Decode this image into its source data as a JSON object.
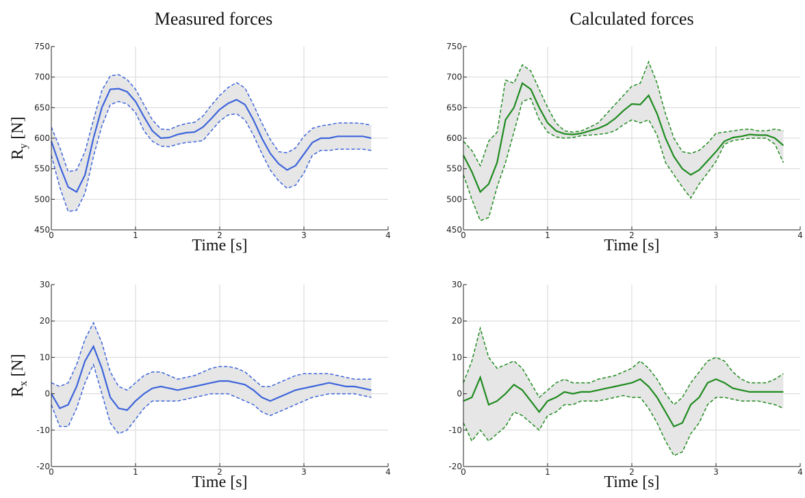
{
  "figure": {
    "left_title": "Measured forces",
    "right_title": "Calculated forces",
    "colors": {
      "measured": "#3b63db",
      "calculated": "#1d8a1d",
      "band": "#e6e6e6"
    }
  },
  "chart_data": [
    {
      "type": "line",
      "panel": "top-left",
      "title": "Measured forces",
      "xlabel": "Time [s]",
      "ylabel": "R_y [N]",
      "ylabel_main": "R",
      "ylabel_sub": "y",
      "ylabel_unit": "[N]",
      "xlim": [
        0,
        4
      ],
      "ylim": [
        450,
        750
      ],
      "xticks": [
        "0",
        "1",
        "2",
        "3",
        "4"
      ],
      "yticks": [
        "450",
        "500",
        "550",
        "600",
        "650",
        "700",
        "750"
      ],
      "grid": true,
      "x": [
        0,
        0.1,
        0.2,
        0.3,
        0.4,
        0.5,
        0.6,
        0.7,
        0.8,
        0.9,
        1.0,
        1.1,
        1.2,
        1.3,
        1.4,
        1.5,
        1.6,
        1.7,
        1.8,
        1.9,
        2.0,
        2.1,
        2.2,
        2.3,
        2.4,
        2.5,
        2.6,
        2.7,
        2.8,
        2.9,
        3.0,
        3.1,
        3.2,
        3.3,
        3.4,
        3.5,
        3.6,
        3.7,
        3.8
      ],
      "mean": [
        595,
        555,
        520,
        512,
        540,
        600,
        650,
        680,
        681,
        676,
        660,
        635,
        612,
        600,
        601,
        606,
        609,
        610,
        618,
        632,
        647,
        657,
        663,
        655,
        630,
        600,
        575,
        558,
        548,
        555,
        574,
        593,
        600,
        600,
        603,
        603,
        603,
        603,
        600
      ],
      "upper": [
        618,
        585,
        545,
        548,
        578,
        630,
        678,
        702,
        704,
        696,
        680,
        655,
        630,
        615,
        614,
        620,
        624,
        626,
        636,
        654,
        670,
        683,
        691,
        682,
        655,
        625,
        598,
        578,
        576,
        584,
        603,
        616,
        620,
        622,
        625,
        625,
        625,
        624,
        621
      ],
      "lower": [
        572,
        520,
        480,
        482,
        510,
        570,
        620,
        655,
        660,
        656,
        642,
        612,
        595,
        587,
        586,
        590,
        593,
        594,
        596,
        612,
        628,
        638,
        640,
        630,
        605,
        575,
        548,
        530,
        518,
        523,
        543,
        572,
        580,
        580,
        582,
        582,
        582,
        582,
        580
      ]
    },
    {
      "type": "line",
      "panel": "top-right",
      "title": "Calculated forces",
      "xlabel": "Time [s]",
      "ylabel": "",
      "xlim": [
        0,
        4
      ],
      "ylim": [
        450,
        750
      ],
      "xticks": [
        "0",
        "1",
        "2",
        "3",
        "4"
      ],
      "yticks": [
        "450",
        "500",
        "550",
        "600",
        "650",
        "700",
        "750"
      ],
      "grid": true,
      "x": [
        0,
        0.1,
        0.2,
        0.3,
        0.4,
        0.5,
        0.6,
        0.7,
        0.8,
        0.9,
        1.0,
        1.1,
        1.2,
        1.3,
        1.4,
        1.5,
        1.6,
        1.7,
        1.8,
        1.9,
        2.0,
        2.1,
        2.2,
        2.3,
        2.4,
        2.5,
        2.6,
        2.7,
        2.8,
        2.9,
        3.0,
        3.1,
        3.2,
        3.3,
        3.4,
        3.5,
        3.6,
        3.7,
        3.8
      ],
      "mean": [
        572,
        545,
        512,
        525,
        560,
        630,
        650,
        690,
        680,
        650,
        625,
        612,
        607,
        606,
        608,
        612,
        616,
        622,
        632,
        645,
        656,
        655,
        670,
        640,
        600,
        570,
        550,
        540,
        548,
        563,
        578,
        595,
        601,
        603,
        606,
        605,
        605,
        600,
        588
      ],
      "upper": [
        595,
        580,
        555,
        595,
        610,
        695,
        690,
        720,
        710,
        680,
        650,
        625,
        612,
        610,
        612,
        618,
        625,
        640,
        655,
        670,
        685,
        690,
        725,
        690,
        640,
        600,
        578,
        575,
        580,
        592,
        608,
        610,
        612,
        614,
        615,
        612,
        612,
        615,
        612
      ],
      "lower": [
        540,
        500,
        465,
        470,
        520,
        560,
        610,
        660,
        665,
        630,
        610,
        602,
        600,
        601,
        604,
        605,
        606,
        608,
        612,
        622,
        630,
        625,
        630,
        605,
        560,
        540,
        520,
        502,
        525,
        543,
        562,
        590,
        596,
        598,
        600,
        600,
        600,
        590,
        560
      ]
    },
    {
      "type": "line",
      "panel": "bottom-left",
      "title": "",
      "xlabel": "Time [s]",
      "ylabel": "R_x [N]",
      "ylabel_main": "R",
      "ylabel_sub": "x",
      "ylabel_unit": "[N]",
      "xlim": [
        0,
        4
      ],
      "ylim": [
        -20,
        30
      ],
      "xticks": [
        "0",
        "1",
        "2",
        "3",
        "4"
      ],
      "yticks": [
        "-20",
        "-10",
        "0",
        "10",
        "20",
        "30"
      ],
      "grid": true,
      "x": [
        0,
        0.1,
        0.2,
        0.3,
        0.4,
        0.5,
        0.6,
        0.7,
        0.8,
        0.9,
        1.0,
        1.1,
        1.2,
        1.3,
        1.4,
        1.5,
        1.6,
        1.7,
        1.8,
        1.9,
        2.0,
        2.1,
        2.2,
        2.3,
        2.4,
        2.5,
        2.6,
        2.7,
        2.8,
        2.9,
        3.0,
        3.1,
        3.2,
        3.3,
        3.4,
        3.5,
        3.6,
        3.7,
        3.8
      ],
      "mean": [
        0,
        -4,
        -3,
        2,
        9,
        13,
        7,
        -1,
        -4,
        -4.5,
        -2,
        0,
        1.5,
        2,
        1.5,
        1,
        1.5,
        2,
        2.5,
        3,
        3.5,
        3.5,
        3,
        2.5,
        1,
        -1,
        -2,
        -1,
        0,
        1,
        1.5,
        2,
        2.5,
        3,
        2.5,
        2,
        2,
        1.5,
        1
      ],
      "upper": [
        3,
        2,
        3,
        8,
        15,
        19.5,
        14,
        6,
        2,
        1,
        3,
        5,
        6,
        6,
        5,
        4,
        4.5,
        5,
        6,
        7,
        7.5,
        7.5,
        7,
        6,
        4,
        2,
        2,
        3,
        4,
        5,
        5.5,
        5.5,
        5.5,
        5.5,
        5,
        4.5,
        4,
        4,
        4
      ],
      "lower": [
        -3,
        -9,
        -9,
        -4,
        3,
        8,
        0,
        -8,
        -11,
        -10,
        -7,
        -4,
        -2,
        -2,
        -2,
        -2,
        -1.5,
        -1,
        -0.5,
        0,
        0,
        0,
        -1,
        -2,
        -3,
        -5,
        -6,
        -5,
        -4,
        -3,
        -2,
        -1,
        -0.5,
        0,
        0,
        0,
        0,
        -0.5,
        -1
      ]
    },
    {
      "type": "line",
      "panel": "bottom-right",
      "title": "",
      "xlabel": "Time [s]",
      "ylabel": "",
      "xlim": [
        0,
        4
      ],
      "ylim": [
        -20,
        30
      ],
      "xticks": [
        "0",
        "1",
        "2",
        "3",
        "4"
      ],
      "yticks": [
        "-20",
        "-10",
        "0",
        "10",
        "20",
        "30"
      ],
      "grid": true,
      "x": [
        0,
        0.1,
        0.2,
        0.3,
        0.4,
        0.5,
        0.6,
        0.7,
        0.8,
        0.9,
        1.0,
        1.1,
        1.2,
        1.3,
        1.4,
        1.5,
        1.6,
        1.7,
        1.8,
        1.9,
        2.0,
        2.1,
        2.2,
        2.3,
        2.4,
        2.5,
        2.6,
        2.7,
        2.8,
        2.9,
        3.0,
        3.1,
        3.2,
        3.3,
        3.4,
        3.5,
        3.6,
        3.7,
        3.8
      ],
      "mean": [
        -2,
        -1,
        4.5,
        -3,
        -2,
        0,
        2.5,
        1,
        -2,
        -5,
        -2,
        -1,
        0.5,
        0,
        0.5,
        0.5,
        1,
        1.5,
        2,
        2.5,
        3,
        4,
        2,
        -1,
        -5,
        -9,
        -8,
        -3,
        -1,
        3,
        4,
        3,
        1.5,
        1,
        0.5,
        0.5,
        0.5,
        0.5,
        0.5
      ],
      "upper": [
        3,
        9,
        18,
        10,
        7,
        8,
        9,
        7,
        3,
        -1,
        1,
        3,
        4,
        3,
        3,
        3,
        4,
        4.5,
        5,
        6,
        7,
        9,
        7,
        4,
        0,
        -3,
        -1,
        3,
        6,
        9,
        10,
        9,
        6,
        4,
        3,
        3,
        3,
        4,
        5.5
      ],
      "lower": [
        -8,
        -13,
        -10,
        -13,
        -11,
        -9,
        -5,
        -6,
        -8,
        -10,
        -6,
        -5,
        -3,
        -3,
        -2,
        -2,
        -2,
        -1.5,
        -1,
        -0.5,
        -1,
        -1,
        -4,
        -8,
        -13,
        -17,
        -16,
        -11,
        -8,
        -3,
        -1,
        -1,
        -1.5,
        -2,
        -2,
        -2,
        -2.5,
        -3,
        -4
      ]
    }
  ]
}
